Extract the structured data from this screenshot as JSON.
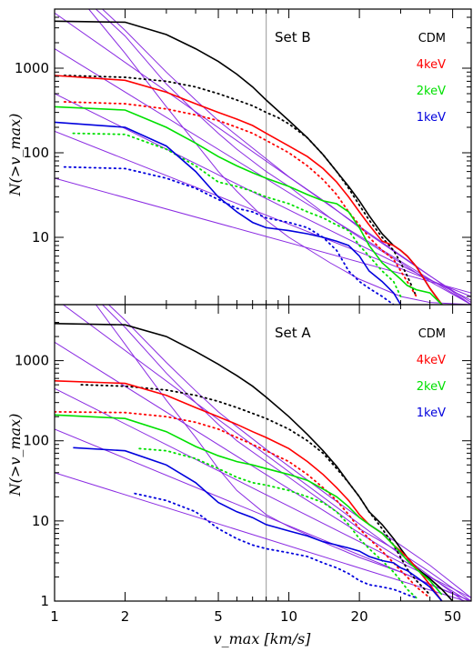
{
  "colors": {
    "CDM": "#000000",
    "4keV": "#ff0000",
    "2keV": "#00e000",
    "1keV": "#0000dd",
    "fit": "#8a2be2",
    "vline": "#a9a9a9"
  },
  "chart_data": [
    {
      "type": "line",
      "title": "Set B",
      "xlabel": "v_max [km/s]",
      "ylabel": "N(>v_max)",
      "xscale": "log",
      "yscale": "log",
      "xlim": [
        1,
        60
      ],
      "ylim": [
        1.6,
        5000
      ],
      "x_ticks": [
        1,
        2,
        5,
        10,
        20,
        50
      ],
      "y_ticks": [
        10,
        100,
        1000
      ],
      "vline_x": 8,
      "legend": [
        "CDM",
        "4keV",
        "2keV",
        "1keV"
      ],
      "legend_position": "top-right",
      "series": [
        {
          "name": "CDM",
          "style": "solid",
          "x": [
            1,
            2,
            3,
            4,
            5,
            6,
            7,
            8,
            10,
            12,
            14,
            16,
            18,
            20,
            22,
            25,
            28,
            30,
            32,
            35,
            40,
            45
          ],
          "y": [
            3600,
            3500,
            2500,
            1700,
            1200,
            850,
            600,
            420,
            240,
            150,
            95,
            60,
            40,
            27,
            18,
            11,
            8,
            7,
            6,
            4.5,
            2.5,
            1.6
          ]
        },
        {
          "name": "CDM",
          "style": "dotted",
          "x": [
            1.1,
            2,
            3,
            4,
            5,
            6,
            7,
            8,
            9,
            10,
            12,
            14,
            16,
            18,
            20,
            22,
            25,
            28,
            30,
            32,
            35
          ],
          "y": [
            820,
            780,
            700,
            600,
            500,
            420,
            360,
            300,
            260,
            220,
            150,
            95,
            60,
            38,
            24,
            16,
            10,
            7,
            5,
            3.5,
            2
          ]
        },
        {
          "name": "4keV",
          "style": "solid",
          "x": [
            1,
            2,
            3,
            4,
            5,
            6,
            7,
            8,
            10,
            12,
            14,
            16,
            18,
            20,
            22,
            25,
            28,
            30,
            32,
            35,
            40,
            45
          ],
          "y": [
            820,
            720,
            520,
            380,
            300,
            250,
            210,
            170,
            120,
            90,
            65,
            45,
            30,
            20,
            14,
            9,
            8,
            7,
            6,
            4.5,
            2.5,
            1.6
          ]
        },
        {
          "name": "4keV",
          "style": "dotted",
          "x": [
            1.1,
            2,
            3,
            4,
            5,
            6,
            7,
            8,
            10,
            12,
            14,
            16,
            18,
            20,
            22,
            25,
            28,
            30,
            32,
            35
          ],
          "y": [
            400,
            380,
            330,
            280,
            240,
            200,
            170,
            140,
            100,
            70,
            48,
            32,
            20,
            14,
            10,
            7,
            5.5,
            4,
            3,
            2
          ]
        },
        {
          "name": "2keV",
          "style": "solid",
          "x": [
            1,
            2,
            3,
            4,
            5,
            6,
            7,
            8,
            10,
            12,
            14,
            16,
            18,
            20,
            22,
            25,
            28,
            30,
            32,
            35,
            40,
            45
          ],
          "y": [
            350,
            320,
            200,
            130,
            90,
            70,
            58,
            50,
            40,
            32,
            27,
            25,
            20,
            13,
            8,
            5,
            3.8,
            3.2,
            2.7,
            2.4,
            2.2,
            1.6
          ]
        },
        {
          "name": "2keV",
          "style": "dotted",
          "x": [
            1.2,
            2,
            3,
            4,
            5,
            6,
            7,
            8,
            10,
            12,
            14,
            16,
            18,
            20,
            22,
            25,
            28,
            30
          ],
          "y": [
            170,
            165,
            110,
            70,
            45,
            40,
            35,
            30,
            25,
            20,
            17,
            14,
            12,
            8,
            6,
            4,
            3,
            2
          ]
        },
        {
          "name": "1keV",
          "style": "solid",
          "x": [
            1,
            2,
            3,
            4,
            5,
            6,
            7,
            8,
            10,
            12,
            14,
            16,
            18,
            20,
            22,
            25,
            28,
            30
          ],
          "y": [
            230,
            200,
            120,
            60,
            30,
            20,
            15,
            13,
            12,
            11,
            10,
            9,
            8,
            6,
            4,
            3,
            2.2,
            1.6
          ]
        },
        {
          "name": "1keV",
          "style": "dotted",
          "x": [
            1.1,
            2,
            3,
            4,
            5,
            6,
            7,
            8,
            10,
            12,
            14,
            16,
            18,
            20,
            22,
            25,
            28
          ],
          "y": [
            68,
            65,
            50,
            38,
            28,
            22,
            20,
            17,
            15,
            13,
            10,
            7,
            4,
            3,
            2.5,
            2,
            1.6
          ]
        }
      ],
      "fits": [
        {
          "x": [
            1,
            60
          ],
          "y": [
            4500,
            1.6
          ]
        },
        {
          "x": [
            1,
            60
          ],
          "y": [
            1700,
            1.6
          ]
        },
        {
          "x": [
            1,
            60
          ],
          "y": [
            500,
            1.8
          ]
        },
        {
          "x": [
            1,
            60
          ],
          "y": [
            180,
            2.0
          ]
        },
        {
          "x": [
            1,
            60
          ],
          "y": [
            50,
            2.2
          ]
        },
        {
          "x": [
            1.5,
            2,
            3,
            4,
            5,
            6,
            8,
            10,
            15,
            20,
            30,
            40,
            60
          ],
          "y": [
            5000,
            2400,
            650,
            300,
            170,
            110,
            60,
            40,
            17,
            10,
            5,
            3,
            1.6
          ]
        },
        {
          "x": [
            1.6,
            2,
            3,
            4,
            5,
            6,
            8,
            10,
            15,
            20,
            30,
            40,
            60
          ],
          "y": [
            5000,
            2800,
            900,
            420,
            240,
            160,
            85,
            52,
            24,
            13,
            6,
            3.5,
            1.7
          ]
        },
        {
          "x": [
            1.4,
            2,
            3,
            4,
            5,
            6,
            8,
            10,
            15,
            20,
            30,
            40,
            60
          ],
          "y": [
            5000,
            1500,
            350,
            130,
            60,
            35,
            16,
            10,
            5,
            3.2,
            2,
            1.7,
            1.6
          ]
        }
      ]
    },
    {
      "type": "line",
      "title": "Set A",
      "xlabel": "v_max [km/s]",
      "ylabel": "N(>v_max)",
      "xscale": "log",
      "yscale": "log",
      "xlim": [
        1,
        60
      ],
      "ylim": [
        1,
        5000
      ],
      "x_ticks": [
        1,
        2,
        5,
        10,
        20,
        50
      ],
      "y_ticks": [
        1,
        10,
        100,
        1000
      ],
      "vline_x": 8,
      "legend": [
        "CDM",
        "4keV",
        "2keV",
        "1keV"
      ],
      "legend_position": "top-right",
      "series": [
        {
          "name": "CDM",
          "style": "solid",
          "x": [
            1,
            2,
            3,
            4,
            5,
            6,
            7,
            8,
            10,
            12,
            14,
            16,
            18,
            20,
            22,
            25,
            28,
            30,
            32,
            35,
            40,
            45,
            50
          ],
          "y": [
            2900,
            2800,
            2000,
            1300,
            900,
            650,
            480,
            350,
            200,
            120,
            75,
            48,
            30,
            20,
            13,
            9,
            6,
            4.5,
            3.5,
            2.6,
            1.9,
            1.4,
            1
          ]
        },
        {
          "name": "CDM",
          "style": "dotted",
          "x": [
            1.3,
            2,
            3,
            4,
            5,
            6,
            7,
            8,
            10,
            12,
            14,
            16,
            18,
            20,
            22,
            25,
            28,
            30,
            32,
            35,
            40
          ],
          "y": [
            500,
            480,
            430,
            370,
            310,
            260,
            220,
            190,
            140,
            100,
            70,
            45,
            30,
            20,
            13,
            8,
            5,
            3.5,
            2.5,
            1.8,
            1.2
          ]
        },
        {
          "name": "4keV",
          "style": "solid",
          "x": [
            1,
            2,
            3,
            4,
            5,
            6,
            7,
            8,
            10,
            12,
            14,
            16,
            18,
            20,
            22,
            25,
            28,
            30,
            32,
            35,
            40,
            45
          ],
          "y": [
            560,
            520,
            370,
            260,
            200,
            160,
            130,
            110,
            80,
            55,
            38,
            26,
            18,
            12,
            9,
            7,
            5,
            4.2,
            3.5,
            2.6,
            1.6,
            1
          ]
        },
        {
          "name": "4keV",
          "style": "dotted",
          "x": [
            1,
            2,
            3,
            4,
            5,
            6,
            7,
            8,
            10,
            12,
            14,
            16,
            18,
            20,
            22,
            25,
            28,
            30,
            32,
            35,
            40
          ],
          "y": [
            230,
            225,
            200,
            170,
            140,
            110,
            90,
            75,
            55,
            38,
            26,
            18,
            12,
            8,
            6,
            4.2,
            3,
            2.4,
            2,
            1.5,
            1.1
          ]
        },
        {
          "name": "2keV",
          "style": "solid",
          "x": [
            1,
            2,
            3,
            4,
            5,
            6,
            7,
            8,
            10,
            12,
            14,
            16,
            18,
            20,
            22,
            25,
            28,
            30,
            32,
            35,
            40,
            45
          ],
          "y": [
            210,
            190,
            130,
            85,
            65,
            55,
            50,
            45,
            38,
            32,
            25,
            20,
            15,
            11,
            9,
            7,
            5,
            4,
            3.2,
            2.5,
            1.8,
            1.2
          ]
        },
        {
          "name": "2keV",
          "style": "dotted",
          "x": [
            2.3,
            3,
            4,
            5,
            6,
            7,
            8,
            10,
            12,
            14,
            16,
            18,
            20,
            22,
            25,
            28,
            30,
            32,
            35
          ],
          "y": [
            80,
            75,
            60,
            45,
            35,
            30,
            28,
            24,
            20,
            17,
            13,
            9,
            6,
            4.5,
            3.2,
            2.3,
            1.8,
            1.4,
            1.1
          ]
        },
        {
          "name": "1keV",
          "style": "solid",
          "x": [
            1.2,
            2,
            3,
            4,
            5,
            6,
            7,
            8,
            10,
            12,
            14,
            16,
            18,
            20,
            22,
            25,
            28,
            30,
            32,
            35,
            40,
            45
          ],
          "y": [
            82,
            75,
            50,
            30,
            17,
            13,
            11,
            9,
            7.5,
            6.5,
            5.5,
            5,
            4.6,
            4.2,
            3.6,
            3.2,
            3,
            2.6,
            2.4,
            2,
            1.5,
            1
          ]
        },
        {
          "name": "1keV",
          "style": "dotted",
          "x": [
            2.2,
            3,
            4,
            5,
            6,
            7,
            8,
            10,
            12,
            14,
            16,
            18,
            20,
            22,
            25,
            28,
            30,
            32,
            35
          ],
          "y": [
            22,
            18,
            13,
            8,
            6,
            5,
            4.5,
            4,
            3.6,
            3,
            2.6,
            2.2,
            1.8,
            1.6,
            1.5,
            1.4,
            1.3,
            1.2,
            1.1
          ]
        }
      ],
      "fits": [
        {
          "x": [
            1,
            60
          ],
          "y": [
            6000,
            0.85
          ]
        },
        {
          "x": [
            1,
            60
          ],
          "y": [
            1700,
            0.95
          ]
        },
        {
          "x": [
            1,
            60
          ],
          "y": [
            450,
            1.1
          ]
        },
        {
          "x": [
            1,
            60
          ],
          "y": [
            140,
            1.0
          ]
        },
        {
          "x": [
            1,
            60
          ],
          "y": [
            40,
            0.95
          ]
        },
        {
          "x": [
            1.6,
            2,
            3,
            4,
            5,
            6,
            8,
            10,
            15,
            20,
            30,
            40,
            60
          ],
          "y": [
            5000,
            2600,
            700,
            300,
            160,
            100,
            55,
            35,
            15,
            8,
            4,
            2.3,
            1
          ]
        },
        {
          "x": [
            1.7,
            2,
            3,
            4,
            5,
            6,
            8,
            10,
            15,
            20,
            30,
            40,
            60
          ],
          "y": [
            5000,
            3200,
            950,
            420,
            230,
            150,
            78,
            48,
            20,
            11,
            5,
            2.8,
            1.1
          ]
        },
        {
          "x": [
            1.5,
            2,
            3,
            4,
            5,
            6,
            8,
            10,
            15,
            20,
            30,
            40,
            60
          ],
          "y": [
            5000,
            1600,
            320,
            110,
            45,
            24,
            12,
            8.5,
            5,
            3.5,
            2.3,
            1.6,
            1
          ]
        }
      ]
    }
  ]
}
